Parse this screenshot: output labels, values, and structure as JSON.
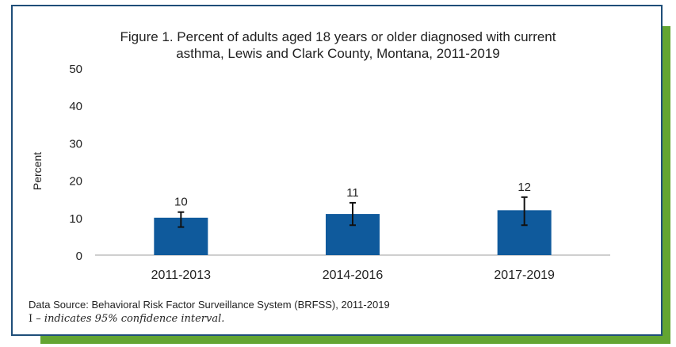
{
  "chart_data": {
    "type": "bar",
    "title_lines": [
      "Figure 1. Percent of adults aged 18 years or older diagnosed with current",
      "asthma, Lewis and Clark County, Montana, 2011-2019"
    ],
    "ylabel": "Percent",
    "xlabel": "",
    "ylim": [
      0,
      50
    ],
    "yticks": [
      0,
      10,
      20,
      30,
      40,
      50
    ],
    "categories": [
      "2011-2013",
      "2014-2016",
      "2017-2019"
    ],
    "values": [
      10,
      11,
      12
    ],
    "data_labels": [
      "10",
      "11",
      "12"
    ],
    "ci_lower": [
      7.5,
      8,
      8
    ],
    "ci_upper": [
      11.5,
      14,
      15.5
    ],
    "grid": false,
    "bar_color": "#0f5a9c"
  },
  "footer": {
    "source": "Data Source: Behavioral Risk Factor Surveillance System (BRFSS), 2011-2019",
    "ci_symbol": "I",
    "ci_dash": " – ",
    "ci_text": "indicates 95% confidence interval."
  },
  "colors": {
    "frame_border": "#1f4e79",
    "shadow": "#63a532",
    "axis": "#bfbfbf",
    "text": "#222222"
  }
}
